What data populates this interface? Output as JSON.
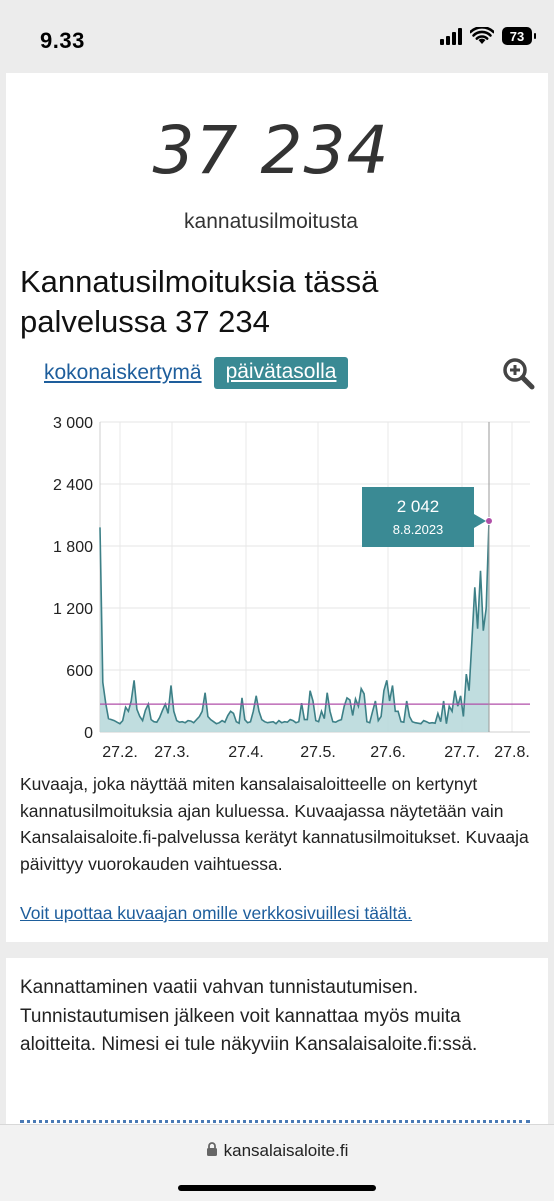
{
  "status": {
    "time": "9.33",
    "battery": "73"
  },
  "summary": {
    "count": "37 234",
    "count_label": "kannatusilmoitusta"
  },
  "heading": "Kannatusilmoituksia tässä palvelussa 37 234",
  "tabs": {
    "cumulative": "kokonaiskertymä",
    "daily": "päivätasolla"
  },
  "icons": {
    "zoom": "zoom-in-icon",
    "lock": "lock-icon",
    "wifi": "wifi-icon",
    "signal": "signal-icon"
  },
  "chart_data": {
    "type": "area",
    "title": "",
    "xlabel": "",
    "ylabel": "",
    "ylim": [
      0,
      3000
    ],
    "yticks": [
      "3 000",
      "2 400",
      "1 800",
      "1 200",
      "600",
      "0"
    ],
    "ytick_values": [
      3000,
      2400,
      1800,
      1200,
      600,
      0
    ],
    "xticks": [
      "27.2.",
      "27.3.",
      "27.4.",
      "27.5.",
      "27.6.",
      "27.7.",
      "27.8."
    ],
    "reference_line": 270,
    "grid": true,
    "colors": {
      "line": "#3d8087",
      "fill": "#b9d9dc",
      "reference": "#b04fa8",
      "tooltip": "#3a8a94"
    },
    "tooltip": {
      "value": "2 042",
      "date": "8.8.2023"
    },
    "values": [
      1980,
      480,
      280,
      130,
      120,
      110,
      95,
      80,
      110,
      240,
      200,
      300,
      500,
      220,
      150,
      110,
      210,
      270,
      120,
      100,
      95,
      140,
      210,
      270,
      180,
      450,
      200,
      110,
      95,
      100,
      90,
      110,
      105,
      90,
      120,
      150,
      200,
      380,
      150,
      120,
      100,
      80,
      90,
      110,
      95,
      160,
      200,
      180,
      100,
      85,
      330,
      120,
      90,
      100,
      200,
      350,
      200,
      120,
      100,
      90,
      95,
      100,
      80,
      110,
      90,
      100,
      95,
      120,
      110,
      90,
      100,
      280,
      120,
      120,
      400,
      300,
      110,
      100,
      200,
      130,
      380,
      200,
      100,
      95,
      110,
      120,
      250,
      330,
      310,
      160,
      320,
      250,
      420,
      370,
      100,
      90,
      200,
      300,
      110,
      150,
      400,
      500,
      300,
      450,
      200,
      200,
      100,
      95,
      300,
      150,
      100,
      90,
      85,
      80,
      110,
      100,
      85,
      90,
      85,
      180,
      100,
      300,
      80,
      250,
      200,
      400,
      250,
      350,
      150,
      560,
      400,
      900,
      1400,
      1000,
      1560,
      980,
      1200,
      2042
    ]
  },
  "description": "Kuvaaja, joka näyttää miten kansalaisaloitteelle on kertynyt kannatusilmoituksia ajan kuluessa. Kuvaajassa näytetään vain Kansalaisaloite.fi-palvelussa kerätyt kannatusilmoitukset. Kuvaaja päivittyy vuorokauden vaihtuessa.",
  "embed_link": "Voit upottaa kuvaajan omille verkkosivuillesi täältä.",
  "info": "Kannattaminen vaatii vahvan tunnistautumisen. Tunnistautumisen jälkeen voit kannattaa myös muita aloitteita. Nimesi ei tule näkyviin Kansalaisaloite.fi:ssä.",
  "address": {
    "url": "kansalaisaloite.fi"
  }
}
